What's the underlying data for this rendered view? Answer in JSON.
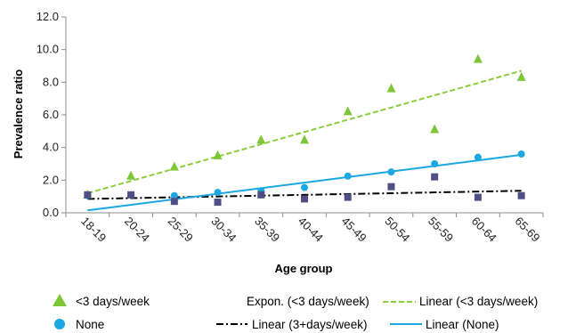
{
  "chart_data": {
    "type": "scatter",
    "xlabel": "Age group",
    "ylabel": "Prevalence ratio",
    "categories": [
      "18-19",
      "20-24",
      "25-29",
      "30-34",
      "35-39",
      "40-44",
      "45-49",
      "50-54",
      "55-59",
      "60-64",
      "65-69"
    ],
    "ylim": [
      0,
      12
    ],
    "yticks": [
      "0.0",
      "2.0",
      "4.0",
      "6.0",
      "8.0",
      "10.0",
      "12.0"
    ],
    "grid": false,
    "series": [
      {
        "name": "<3 days/week",
        "marker": "triangle",
        "color": "#7ec636",
        "values": [
          1.1,
          2.25,
          2.8,
          3.5,
          4.45,
          4.45,
          6.2,
          7.6,
          5.1,
          9.4,
          8.3
        ]
      },
      {
        "name": "None",
        "marker": "circle",
        "color": "#1ba7e1",
        "values": [
          1.05,
          1.1,
          1.05,
          1.25,
          1.35,
          1.55,
          2.25,
          2.5,
          3.0,
          3.4,
          3.6
        ]
      },
      {
        "name": "",
        "marker": "square",
        "color": "#4f4f86",
        "values": [
          1.1,
          1.1,
          0.7,
          0.65,
          1.1,
          0.85,
          0.95,
          1.6,
          2.2,
          0.95,
          1.05
        ]
      }
    ],
    "trendlines": [
      {
        "name": "Expon. (<3 days/week)",
        "style": "invisible",
        "color": "#7ec636"
      },
      {
        "name": "Linear (<3 days/week)",
        "style": "dashed",
        "color": "#8ccd3c",
        "start": 1.2,
        "end": 8.7
      },
      {
        "name": "Linear (3+days/week)",
        "style": "dash-dot",
        "color": "#000000",
        "start": 0.85,
        "end": 1.35
      },
      {
        "name": "Linear (None)",
        "style": "solid",
        "color": "#1ba7e1",
        "start": 0.15,
        "end": 3.55
      }
    ],
    "legend": "bottom"
  }
}
